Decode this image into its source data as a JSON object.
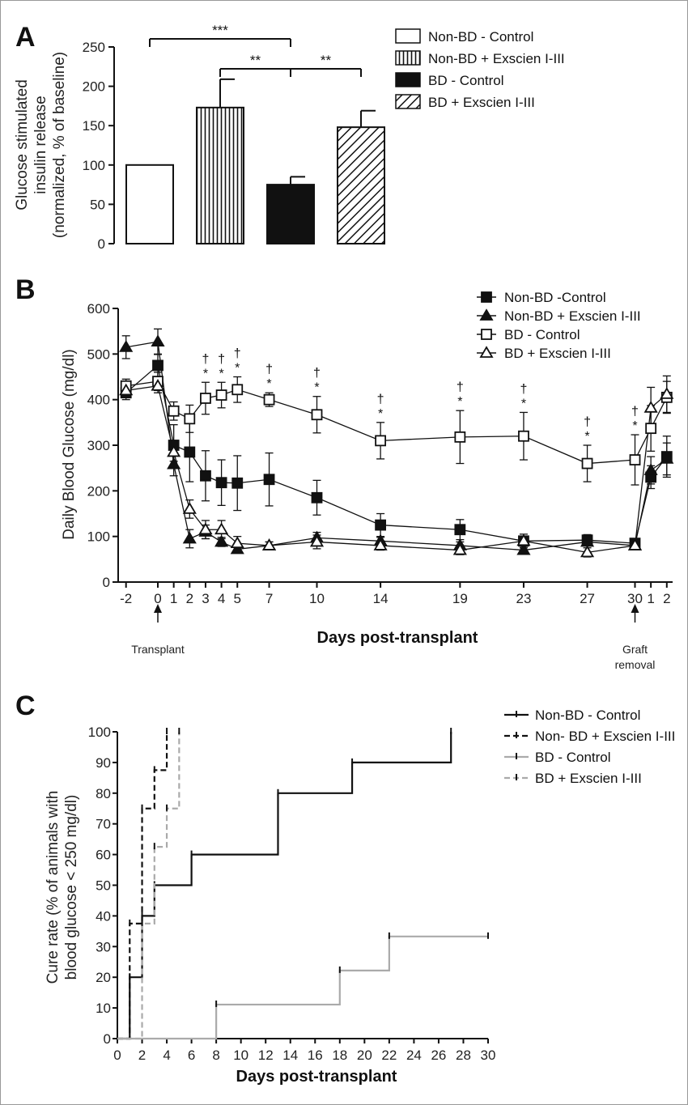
{
  "chart_data": [
    {
      "panel": "A",
      "type": "bar",
      "ylabel": [
        "Glucose stimulated",
        "insulin release",
        "(normalized, % of baseline)"
      ],
      "ylim": [
        0,
        250
      ],
      "yticks": [
        0,
        50,
        100,
        150,
        200,
        250
      ],
      "categories": [
        "Non-BD - Control",
        "Non-BD + Exscien I-III",
        "BD - Control",
        "BD + Exscien I-III"
      ],
      "values": [
        100,
        173,
        75,
        148
      ],
      "errors": [
        0,
        36,
        10,
        21
      ],
      "fills": [
        "white",
        "vertical-stripes",
        "black",
        "diagonal-stripes"
      ],
      "significance": [
        {
          "from": 0,
          "to": 2,
          "label": "***"
        },
        {
          "from": 1,
          "to": 2,
          "label": "**"
        },
        {
          "from": 2,
          "to": 3,
          "label": "**"
        }
      ],
      "legend": "top-right"
    },
    {
      "panel": "B",
      "type": "line",
      "ylabel": "Daily Blood Glucose (mg/dl)",
      "xlabel": "Days post-transplant",
      "ylim": [
        0,
        600
      ],
      "yticks": [
        0,
        100,
        200,
        300,
        400,
        500,
        600
      ],
      "x": [
        -2,
        0,
        1,
        2,
        3,
        4,
        5,
        7,
        10,
        14,
        19,
        23,
        27,
        30,
        31,
        32
      ],
      "xtick_labels": [
        "-2",
        "0",
        "1",
        "2",
        "3",
        "4",
        "5",
        "7",
        "10",
        "14",
        "19",
        "23",
        "27",
        "30",
        "1",
        "2"
      ],
      "annotations_x": [
        {
          "x": 0,
          "label": "Transplant"
        },
        {
          "x": 30,
          "label": "Graft removal"
        }
      ],
      "significance_days": [
        3,
        4,
        5,
        7,
        10,
        14,
        19,
        23,
        27,
        30
      ],
      "significance_marks": [
        "†",
        "*"
      ],
      "series": [
        {
          "name": "Non-BD -Control",
          "marker": "filled-square",
          "values": [
            415,
            475,
            300,
            285,
            233,
            218,
            217,
            225,
            185,
            125,
            115,
            90,
            92,
            85,
            230,
            275
          ],
          "errors": [
            15,
            25,
            45,
            65,
            55,
            50,
            60,
            58,
            38,
            25,
            22,
            15,
            12,
            8,
            25,
            45
          ]
        },
        {
          "name": "Non-BD + Exscien I-III",
          "marker": "filled-triangle",
          "values": [
            515,
            527,
            258,
            95,
            110,
            88,
            72,
            80,
            97,
            90,
            80,
            70,
            88,
            80,
            245,
            270
          ],
          "errors": [
            25,
            28,
            25,
            20,
            15,
            10,
            8,
            8,
            12,
            8,
            8,
            8,
            8,
            6,
            30,
            35
          ]
        },
        {
          "name": "BD - Control",
          "marker": "open-square",
          "values": [
            430,
            440,
            375,
            358,
            403,
            410,
            422,
            400,
            367,
            310,
            318,
            320,
            260,
            268,
            337,
            405
          ],
          "errors": [
            15,
            20,
            20,
            30,
            35,
            28,
            28,
            15,
            40,
            40,
            58,
            52,
            40,
            55,
            50,
            35
          ]
        },
        {
          "name": "BD + Exscien I-III",
          "marker": "open-triangle",
          "values": [
            420,
            430,
            285,
            160,
            115,
            115,
            85,
            80,
            88,
            80,
            70,
            90,
            65,
            80,
            382,
            412
          ],
          "errors": [
            10,
            15,
            20,
            20,
            20,
            20,
            15,
            8,
            15,
            10,
            10,
            10,
            10,
            8,
            45,
            40
          ]
        }
      ],
      "legend": "top-right"
    },
    {
      "panel": "C",
      "type": "line",
      "step": true,
      "ylabel": [
        "Cure rate (% of animals with",
        "blood glucose < 250 mg/dl)"
      ],
      "xlabel": "Days post-transplant",
      "xlim": [
        0,
        30
      ],
      "xticks": [
        0,
        2,
        4,
        6,
        8,
        10,
        12,
        14,
        16,
        18,
        20,
        22,
        24,
        26,
        28,
        30
      ],
      "ylim": [
        0,
        100
      ],
      "yticks": [
        0,
        10,
        20,
        30,
        40,
        50,
        60,
        70,
        80,
        90,
        100
      ],
      "series": [
        {
          "name": "Non-BD - Control",
          "color": "#111111",
          "dashed": false,
          "points": [
            [
              0,
              0
            ],
            [
              1,
              20
            ],
            [
              2,
              40
            ],
            [
              3,
              50
            ],
            [
              6,
              60
            ],
            [
              13,
              80
            ],
            [
              19,
              90
            ],
            [
              27,
              100
            ]
          ]
        },
        {
          "name": "Non- BD + Exscien I-III",
          "color": "#111111",
          "dashed": true,
          "points": [
            [
              0,
              0
            ],
            [
              1,
              37.5
            ],
            [
              2,
              75
            ],
            [
              3,
              87.5
            ],
            [
              4,
              100
            ]
          ]
        },
        {
          "name": "BD - Control",
          "color": "#aaaaaa",
          "dashed": false,
          "points": [
            [
              0,
              0
            ],
            [
              8,
              11.1
            ],
            [
              18,
              22.2
            ],
            [
              22,
              33.3
            ],
            [
              30,
              33.3
            ]
          ]
        },
        {
          "name": "BD + Exscien I-III",
          "color": "#aaaaaa",
          "dashed": true,
          "points": [
            [
              0,
              0
            ],
            [
              2,
              37.5
            ],
            [
              3,
              62.5
            ],
            [
              4,
              75
            ],
            [
              5,
              100
            ]
          ]
        }
      ],
      "legend": "top-right"
    }
  ]
}
